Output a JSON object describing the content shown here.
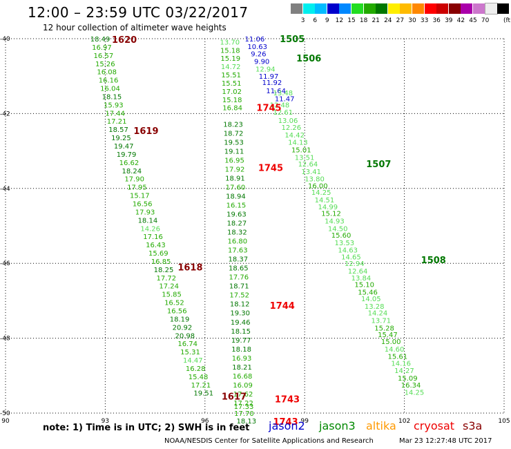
{
  "title": "12:00 – 23:59 UTC 03/22/2017",
  "subtitle": "12 hour collection of altimeter wave heights",
  "color_scale": {
    "colors": [
      "#808080",
      "#00eeee",
      "#00bbff",
      "#0000cc",
      "#0088ff",
      "#22dd22",
      "#22aa00",
      "#007700",
      "#ffee00",
      "#ffbb00",
      "#ff8800",
      "#ff0000",
      "#cc0000",
      "#880000",
      "#aa00aa",
      "#cc77cc",
      "#eeeeee",
      "#000000"
    ],
    "labels": [
      "3",
      "6",
      "9",
      "12",
      "15",
      "18",
      "21",
      "24",
      "27",
      "30",
      "33",
      "36",
      "39",
      "42",
      "45",
      "70"
    ],
    "unit": "(ft)"
  },
  "note": "note: 1) Time is in UTC; 2) SWH is in feet",
  "legend": [
    {
      "name": "jason2",
      "color": "#0000cc"
    },
    {
      "name": "jason3",
      "color": "#008800"
    },
    {
      "name": "altika",
      "color": "#ff9900"
    },
    {
      "name": "cryosat",
      "color": "#ee0000"
    },
    {
      "name": "s3a",
      "color": "#880000"
    }
  ],
  "footer": {
    "org": "NOAA/NESDIS Center for Satellite Applications and Research",
    "timestamp": "Mar 23 12:27:48 UTC 2017"
  },
  "chart_data": {
    "type": "scatter",
    "xlim": [
      90,
      105
    ],
    "ylim": [
      -50,
      -40
    ],
    "x_ticks": [
      "90",
      "93",
      "96",
      "99",
      "102",
      "105"
    ],
    "y_ticks": [
      "-40",
      "-42",
      "-44",
      "-46",
      "-48",
      "-50"
    ],
    "grid": true,
    "tracks": [
      {
        "points": [
          {
            "x": 92.55,
            "y": -40.0,
            "v": "18.49"
          },
          {
            "x": 92.6,
            "y": -40.22,
            "v": "16.97"
          },
          {
            "x": 92.65,
            "y": -40.44,
            "v": "16.57"
          },
          {
            "x": 92.7,
            "y": -40.66,
            "v": "15.26"
          },
          {
            "x": 92.75,
            "y": -40.88,
            "v": "16.08"
          },
          {
            "x": 92.8,
            "y": -41.1,
            "v": "16.16"
          },
          {
            "x": 92.85,
            "y": -41.32,
            "v": "16.04"
          },
          {
            "x": 92.9,
            "y": -41.54,
            "v": "18.15"
          },
          {
            "x": 92.95,
            "y": -41.76,
            "v": "15.93"
          },
          {
            "x": 93.0,
            "y": -41.98,
            "v": "17.44"
          },
          {
            "x": 93.05,
            "y": -42.2,
            "v": "17.21"
          },
          {
            "x": 93.1,
            "y": -42.42,
            "v": "18.57"
          },
          {
            "x": 93.18,
            "y": -42.64,
            "v": "19.25"
          },
          {
            "x": 93.26,
            "y": -42.86,
            "v": "19.47"
          },
          {
            "x": 93.34,
            "y": -43.08,
            "v": "19.79"
          },
          {
            "x": 93.42,
            "y": -43.3,
            "v": "16.62"
          },
          {
            "x": 93.5,
            "y": -43.52,
            "v": "18.24"
          },
          {
            "x": 93.58,
            "y": -43.74,
            "v": "17.90"
          },
          {
            "x": 93.66,
            "y": -43.96,
            "v": "17.95"
          },
          {
            "x": 93.74,
            "y": -44.18,
            "v": "15.17"
          },
          {
            "x": 93.82,
            "y": -44.4,
            "v": "16.56"
          },
          {
            "x": 93.9,
            "y": -44.62,
            "v": "17.93"
          },
          {
            "x": 93.98,
            "y": -44.84,
            "v": "18.14"
          },
          {
            "x": 94.06,
            "y": -45.06,
            "v": "14.26"
          },
          {
            "x": 94.14,
            "y": -45.28,
            "v": "17.16"
          },
          {
            "x": 94.22,
            "y": -45.5,
            "v": "16.43"
          },
          {
            "x": 94.3,
            "y": -45.72,
            "v": "15.69"
          },
          {
            "x": 94.38,
            "y": -45.94,
            "v": "16.85"
          },
          {
            "x": 94.46,
            "y": -46.16,
            "v": "18.25"
          },
          {
            "x": 94.54,
            "y": -46.38,
            "v": "17.72"
          },
          {
            "x": 94.62,
            "y": -46.6,
            "v": "17.24"
          },
          {
            "x": 94.7,
            "y": -46.82,
            "v": "15.85"
          },
          {
            "x": 94.78,
            "y": -47.04,
            "v": "16.52"
          },
          {
            "x": 94.86,
            "y": -47.26,
            "v": "16.56"
          },
          {
            "x": 94.94,
            "y": -47.48,
            "v": "18.19"
          },
          {
            "x": 95.02,
            "y": -47.7,
            "v": "20.92"
          },
          {
            "x": 95.1,
            "y": -47.92,
            "v": "20.98"
          },
          {
            "x": 95.18,
            "y": -48.14,
            "v": "16.74"
          },
          {
            "x": 95.26,
            "y": -48.36,
            "v": "15.31"
          },
          {
            "x": 95.34,
            "y": -48.58,
            "v": "14.47"
          },
          {
            "x": 95.42,
            "y": -48.8,
            "v": "16.28"
          },
          {
            "x": 95.5,
            "y": -49.02,
            "v": "15.48"
          },
          {
            "x": 95.58,
            "y": -49.24,
            "v": "17.21"
          },
          {
            "x": 95.66,
            "y": -49.46,
            "v": "19.51"
          }
        ]
      },
      {
        "points": [
          {
            "x": 96.45,
            "y": -40.08,
            "v": "13.70"
          },
          {
            "x": 96.46,
            "y": -40.3,
            "v": "15.18"
          },
          {
            "x": 96.47,
            "y": -40.52,
            "v": "15.19"
          },
          {
            "x": 96.48,
            "y": -40.74,
            "v": "14.72"
          },
          {
            "x": 96.49,
            "y": -40.96,
            "v": "15.51"
          },
          {
            "x": 96.5,
            "y": -41.18,
            "v": "15.51"
          },
          {
            "x": 96.51,
            "y": -41.4,
            "v": "17.02"
          },
          {
            "x": 96.52,
            "y": -41.62,
            "v": "15.18"
          },
          {
            "x": 96.53,
            "y": -41.84,
            "v": "16.84"
          },
          {
            "x": 96.55,
            "y": -42.28,
            "v": "18.23"
          },
          {
            "x": 96.56,
            "y": -42.52,
            "v": "18.72"
          },
          {
            "x": 96.57,
            "y": -42.76,
            "v": "19.53"
          },
          {
            "x": 96.58,
            "y": -43.0,
            "v": "19.11"
          },
          {
            "x": 96.59,
            "y": -43.24,
            "v": "16.95"
          },
          {
            "x": 96.6,
            "y": -43.48,
            "v": "17.92"
          },
          {
            "x": 96.61,
            "y": -43.72,
            "v": "18.91"
          },
          {
            "x": 96.62,
            "y": -43.96,
            "v": "17.60"
          },
          {
            "x": 96.63,
            "y": -44.2,
            "v": "18.94"
          },
          {
            "x": 96.64,
            "y": -44.44,
            "v": "16.15"
          },
          {
            "x": 96.65,
            "y": -44.68,
            "v": "19.63"
          },
          {
            "x": 96.66,
            "y": -44.92,
            "v": "18.27"
          },
          {
            "x": 96.67,
            "y": -45.16,
            "v": "18.32"
          },
          {
            "x": 96.68,
            "y": -45.4,
            "v": "16.80"
          },
          {
            "x": 96.69,
            "y": -45.64,
            "v": "17.63"
          },
          {
            "x": 96.7,
            "y": -45.88,
            "v": "18.37"
          },
          {
            "x": 96.71,
            "y": -46.12,
            "v": "18.65"
          },
          {
            "x": 96.72,
            "y": -46.36,
            "v": "17.76"
          },
          {
            "x": 96.73,
            "y": -46.6,
            "v": "18.71"
          },
          {
            "x": 96.74,
            "y": -46.84,
            "v": "17.52"
          },
          {
            "x": 96.75,
            "y": -47.08,
            "v": "18.12"
          },
          {
            "x": 96.76,
            "y": -47.32,
            "v": "19.30"
          },
          {
            "x": 96.77,
            "y": -47.56,
            "v": "19.46"
          },
          {
            "x": 96.78,
            "y": -47.8,
            "v": "18.15"
          },
          {
            "x": 96.79,
            "y": -48.04,
            "v": "19.77"
          },
          {
            "x": 96.8,
            "y": -48.28,
            "v": "18.18"
          },
          {
            "x": 96.81,
            "y": -48.52,
            "v": "16.93"
          },
          {
            "x": 96.82,
            "y": -48.76,
            "v": "18.21"
          },
          {
            "x": 96.83,
            "y": -49.0,
            "v": "16.68"
          },
          {
            "x": 96.84,
            "y": -49.24,
            "v": "16.09"
          },
          {
            "x": 96.85,
            "y": -49.48,
            "v": "17.62"
          },
          {
            "x": 96.86,
            "y": -49.72,
            "v": "17.22"
          },
          {
            "x": 96.87,
            "y": -49.82,
            "v": "17.33"
          },
          {
            "x": 96.88,
            "y": -50.0,
            "v": "17.70"
          },
          {
            "x": 96.95,
            "y": -50.2,
            "v": "18.13"
          }
        ]
      },
      {
        "points": [
          {
            "x": 97.2,
            "y": -40.0,
            "v": "11.06"
          },
          {
            "x": 97.28,
            "y": -40.2,
            "v": "10.63"
          },
          {
            "x": 97.38,
            "y": -40.4,
            "v": "9.26"
          },
          {
            "x": 97.48,
            "y": -40.6,
            "v": "9.90"
          },
          {
            "x": 97.52,
            "y": -40.8,
            "v": "12.94"
          },
          {
            "x": 97.62,
            "y": -41.0,
            "v": "11.97"
          },
          {
            "x": 97.72,
            "y": -41.16,
            "v": "11.92"
          },
          {
            "x": 97.84,
            "y": -41.38,
            "v": "11.64"
          },
          {
            "x": 98.1,
            "y": -41.6,
            "v": "11.47"
          },
          {
            "x": 98.05,
            "y": -41.44,
            "v": "13.48"
          },
          {
            "x": 97.95,
            "y": -41.76,
            "v": "12.48"
          },
          {
            "x": 98.05,
            "y": -41.96,
            "v": "12.61"
          },
          {
            "x": 98.2,
            "y": -42.18,
            "v": "13.06"
          },
          {
            "x": 98.3,
            "y": -42.36,
            "v": "12.26"
          },
          {
            "x": 98.4,
            "y": -42.56,
            "v": "14.42"
          },
          {
            "x": 98.5,
            "y": -42.76,
            "v": "14.13"
          },
          {
            "x": 98.6,
            "y": -42.96,
            "v": "15.01"
          },
          {
            "x": 98.7,
            "y": -43.16,
            "v": "13.51"
          },
          {
            "x": 98.8,
            "y": -43.34,
            "v": "12.64"
          },
          {
            "x": 98.9,
            "y": -43.54,
            "v": "13.41"
          },
          {
            "x": 99.0,
            "y": -43.74,
            "v": "13.80"
          },
          {
            "x": 99.1,
            "y": -43.92,
            "v": "16.00"
          },
          {
            "x": 99.2,
            "y": -44.1,
            "v": "14.25"
          },
          {
            "x": 99.3,
            "y": -44.3,
            "v": "14.51"
          },
          {
            "x": 99.4,
            "y": -44.48,
            "v": "14.99"
          },
          {
            "x": 99.5,
            "y": -44.66,
            "v": "15.12"
          },
          {
            "x": 99.6,
            "y": -44.86,
            "v": "14.93"
          },
          {
            "x": 99.7,
            "y": -45.06,
            "v": "14.50"
          },
          {
            "x": 99.8,
            "y": -45.24,
            "v": "15.60"
          },
          {
            "x": 99.9,
            "y": -45.44,
            "v": "13.53"
          },
          {
            "x": 100.0,
            "y": -45.64,
            "v": "14.63"
          },
          {
            "x": 100.1,
            "y": -45.82,
            "v": "14.65"
          },
          {
            "x": 100.2,
            "y": -46.0,
            "v": "12.94"
          },
          {
            "x": 100.3,
            "y": -46.2,
            "v": "12.64"
          },
          {
            "x": 100.4,
            "y": -46.38,
            "v": "13.84"
          },
          {
            "x": 100.5,
            "y": -46.56,
            "v": "15.10"
          },
          {
            "x": 100.6,
            "y": -46.76,
            "v": "15.46"
          },
          {
            "x": 100.7,
            "y": -46.94,
            "v": "14.05"
          },
          {
            "x": 100.8,
            "y": -47.14,
            "v": "13.28"
          },
          {
            "x": 100.9,
            "y": -47.32,
            "v": "14.24"
          },
          {
            "x": 101.0,
            "y": -47.52,
            "v": "13.71"
          },
          {
            "x": 101.1,
            "y": -47.72,
            "v": "15.28"
          },
          {
            "x": 101.2,
            "y": -47.9,
            "v": "15.47"
          },
          {
            "x": 101.3,
            "y": -48.08,
            "v": "15.00"
          },
          {
            "x": 101.4,
            "y": -48.28,
            "v": "14.60"
          },
          {
            "x": 101.5,
            "y": -48.48,
            "v": "15.61"
          },
          {
            "x": 101.6,
            "y": -48.66,
            "v": "14.16"
          },
          {
            "x": 101.7,
            "y": -48.86,
            "v": "14.27"
          },
          {
            "x": 101.8,
            "y": -49.06,
            "v": "15.09"
          },
          {
            "x": 101.9,
            "y": -49.24,
            "v": "16.34"
          },
          {
            "x": 102.0,
            "y": -49.44,
            "v": "14.25"
          }
        ]
      }
    ],
    "time_labels": [
      {
        "x": 93.2,
        "y": -40.02,
        "text": "1620",
        "sat": "s3a"
      },
      {
        "x": 93.85,
        "y": -42.45,
        "text": "1619",
        "sat": "s3a"
      },
      {
        "x": 95.18,
        "y": -46.1,
        "text": "1618",
        "sat": "s3a"
      },
      {
        "x": 96.5,
        "y": -49.55,
        "text": "1617",
        "sat": "s3a"
      },
      {
        "x": 98.25,
        "y": -40.0,
        "text": "1505",
        "sat": "jason3"
      },
      {
        "x": 98.75,
        "y": -40.52,
        "text": "1506",
        "sat": "jason3"
      },
      {
        "x": 100.85,
        "y": -43.34,
        "text": "1507",
        "sat": "jason3"
      },
      {
        "x": 102.5,
        "y": -45.9,
        "text": "1508",
        "sat": "jason3"
      },
      {
        "x": 97.55,
        "y": -41.84,
        "text": "1745",
        "sat": "cryosat"
      },
      {
        "x": 97.6,
        "y": -43.44,
        "text": "1745",
        "sat": "cryosat"
      },
      {
        "x": 97.95,
        "y": -47.12,
        "text": "1744",
        "sat": "cryosat"
      },
      {
        "x": 98.1,
        "y": -49.62,
        "text": "1743",
        "sat": "cryosat"
      },
      {
        "x": 98.05,
        "y": -50.22,
        "text": "1743",
        "sat": "cryosat"
      }
    ]
  }
}
